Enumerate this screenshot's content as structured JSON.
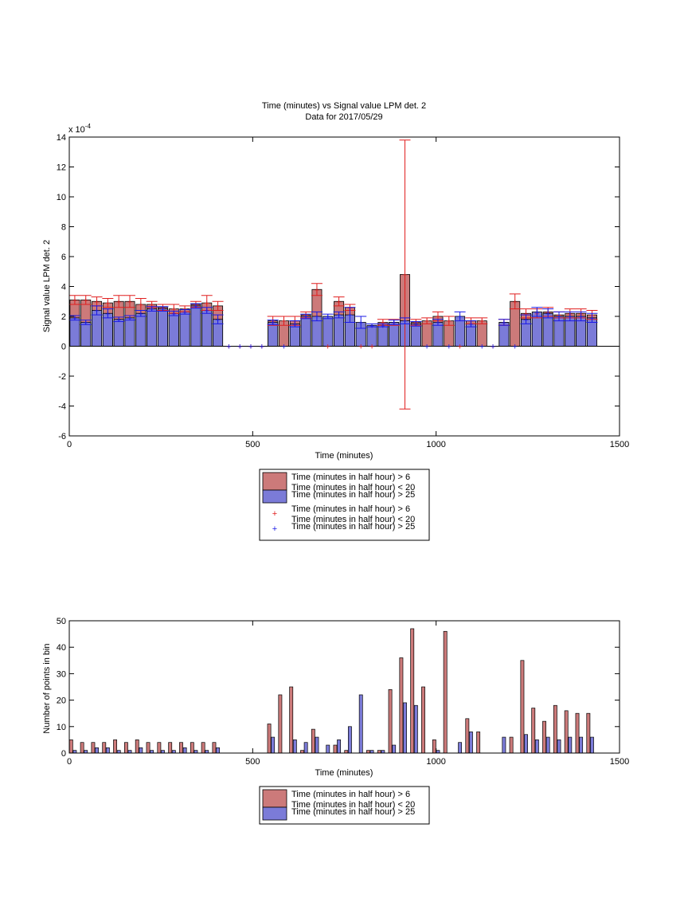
{
  "chart_data": [
    {
      "type": "bar",
      "title": "Time (minutes) vs Signal value LPM det. 2",
      "subtitle": "Data for 2017/05/29",
      "xlabel": "Time (minutes)",
      "ylabel": "Signal value LPM det. 2",
      "exponent_label": "x 10",
      "exponent_power": "-4",
      "xlim": [
        0,
        1500
      ],
      "ylim": [
        -6,
        14
      ],
      "xticks": [
        "0",
        "500",
        "1000",
        "1500"
      ],
      "yticks": [
        "-6",
        "-4",
        "-2",
        "0",
        "2",
        "4",
        "6",
        "8",
        "10",
        "12",
        "14"
      ],
      "legend_position": "below",
      "legend_labels": [
        [
          "Time (minutes in half hour) > 6",
          "Time (minutes in half hour) < 20"
        ],
        [
          "Time (minutes in half hour) > 25"
        ],
        [
          "Time (minutes in half hour) > 6",
          "Time (minutes in half hour) < 20"
        ],
        [
          "Time (minutes in half hour) > 25"
        ]
      ],
      "colors": {
        "series1": "#cc7a7a",
        "series2": "#7b7bd8",
        "err1": "#e01e1e",
        "err2": "#1a1ae6"
      },
      "series1": {
        "x": [
          15,
          45,
          75,
          105,
          135,
          165,
          195,
          225,
          255,
          285,
          315,
          345,
          375,
          405,
          435,
          465,
          495,
          525,
          555,
          585,
          615,
          645,
          675,
          705,
          735,
          765,
          795,
          825,
          855,
          885,
          915,
          945,
          975,
          1005,
          1035,
          1065,
          1095,
          1125,
          1155,
          1185,
          1215,
          1245,
          1275,
          1305,
          1335,
          1365,
          1395,
          1425
        ],
        "y": [
          3.1,
          3.1,
          3.0,
          2.9,
          3.0,
          3.0,
          2.8,
          2.8,
          2.6,
          2.5,
          2.5,
          2.8,
          2.9,
          2.7,
          0,
          0,
          0,
          0,
          1.7,
          1.7,
          1.7,
          2.1,
          3.8,
          0,
          3.0,
          2.6,
          0,
          0,
          1.6,
          1.6,
          4.8,
          1.6,
          1.7,
          2.0,
          1.7,
          0,
          1.7,
          1.7,
          0,
          1.6,
          3.0,
          2.2,
          2.2,
          2.3,
          2.1,
          2.2,
          2.2,
          2.1
        ],
        "err": [
          0.3,
          0.3,
          0.3,
          0.3,
          0.4,
          0.4,
          0.4,
          0.2,
          0.2,
          0.3,
          0.2,
          0.2,
          0.5,
          0.3,
          0,
          0,
          0,
          0,
          0.3,
          0.3,
          0.3,
          0.2,
          0.4,
          0,
          0.3,
          0.2,
          0,
          0,
          0.2,
          0.2,
          9.0,
          0.2,
          0.2,
          0.3,
          0.3,
          0,
          0.2,
          0.2,
          0,
          0.2,
          0.5,
          0.3,
          0.3,
          0.3,
          0.2,
          0.3,
          0.3,
          0.3
        ]
      },
      "series2": {
        "x": [
          15,
          45,
          75,
          105,
          135,
          165,
          195,
          225,
          255,
          285,
          315,
          345,
          375,
          405,
          435,
          465,
          495,
          525,
          555,
          585,
          615,
          645,
          675,
          705,
          735,
          765,
          795,
          825,
          855,
          885,
          915,
          945,
          975,
          1005,
          1035,
          1065,
          1095,
          1125,
          1155,
          1185,
          1215,
          1245,
          1275,
          1305,
          1335,
          1365,
          1395,
          1425
        ],
        "y": [
          1.9,
          1.6,
          2.4,
          2.2,
          1.8,
          1.9,
          2.2,
          2.5,
          2.5,
          2.2,
          2.3,
          2.7,
          2.4,
          1.8,
          0,
          0,
          0,
          0,
          1.6,
          0,
          1.5,
          2.0,
          2.0,
          2.0,
          2.1,
          2.1,
          1.6,
          1.4,
          1.4,
          1.6,
          1.7,
          1.5,
          0,
          1.6,
          0,
          2.0,
          1.5,
          0,
          0,
          1.6,
          0,
          1.8,
          2.3,
          2.2,
          2.0,
          2.0,
          2.0,
          1.9
        ],
        "err": [
          0.15,
          0.15,
          0.3,
          0.3,
          0.15,
          0.15,
          0.2,
          0.15,
          0.15,
          0.15,
          0.15,
          0.15,
          0.2,
          0.3,
          0,
          0,
          0,
          0,
          0.15,
          0,
          0.2,
          0.15,
          0.3,
          0.15,
          0.2,
          0.5,
          0.4,
          0.1,
          0.1,
          0.15,
          0.2,
          0.15,
          0,
          0.2,
          0,
          0.3,
          0.2,
          0,
          0,
          0.2,
          0,
          0.3,
          0.3,
          0.3,
          0.3,
          0.3,
          0.3,
          0.3
        ]
      }
    },
    {
      "type": "bar",
      "xlabel": "Time (minutes)",
      "ylabel": "Number of points in bin",
      "xlim": [
        0,
        1500
      ],
      "ylim": [
        0,
        50
      ],
      "xticks": [
        "0",
        "500",
        "1000",
        "1500"
      ],
      "yticks": [
        "0",
        "10",
        "20",
        "30",
        "40",
        "50"
      ],
      "legend_position": "below",
      "legend_labels": [
        [
          "Time (minutes in half hour) > 6",
          "Time (minutes in half hour) < 20"
        ],
        [
          "Time (minutes in half hour) > 25"
        ]
      ],
      "colors": {
        "series1": "#cc7a7a",
        "series2": "#7b7bd8"
      },
      "series1": {
        "x": [
          5,
          35,
          65,
          95,
          125,
          155,
          185,
          215,
          245,
          275,
          305,
          335,
          365,
          395,
          425,
          455,
          485,
          515,
          545,
          575,
          605,
          635,
          665,
          695,
          725,
          755,
          785,
          815,
          845,
          875,
          905,
          935,
          965,
          995,
          1025,
          1055,
          1085,
          1115,
          1145,
          1175,
          1205,
          1235,
          1265,
          1295,
          1325,
          1355,
          1385,
          1415
        ],
        "y": [
          5,
          4,
          4,
          4,
          5,
          4,
          5,
          4,
          4,
          4,
          4,
          4,
          4,
          4,
          0,
          0,
          0,
          0,
          11,
          22,
          25,
          1,
          9,
          0,
          3,
          1,
          0,
          1,
          1,
          24,
          36,
          47,
          25,
          5,
          46,
          0,
          13,
          8,
          0,
          0,
          6,
          35,
          17,
          12,
          18,
          16,
          15,
          15
        ]
      },
      "series2": {
        "x": [
          5,
          35,
          65,
          95,
          125,
          155,
          185,
          215,
          245,
          275,
          305,
          335,
          365,
          395,
          425,
          455,
          485,
          515,
          545,
          575,
          605,
          635,
          665,
          695,
          725,
          755,
          785,
          815,
          845,
          875,
          905,
          935,
          965,
          995,
          1025,
          1055,
          1085,
          1115,
          1145,
          1175,
          1205,
          1235,
          1265,
          1295,
          1325,
          1355,
          1385,
          1415
        ],
        "y": [
          1,
          1,
          2,
          2,
          1,
          1,
          2,
          1,
          1,
          1,
          2,
          1,
          1,
          2,
          0,
          0,
          0,
          0,
          6,
          0,
          5,
          4,
          6,
          3,
          5,
          10,
          22,
          1,
          1,
          3,
          19,
          18,
          0,
          1,
          0,
          4,
          8,
          0,
          0,
          6,
          0,
          7,
          5,
          6,
          5,
          6,
          6,
          6
        ]
      }
    }
  ]
}
